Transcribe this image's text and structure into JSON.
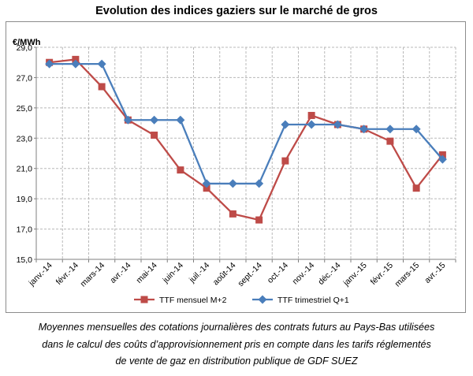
{
  "chart_data": {
    "type": "line",
    "title": "Evolution des indices gaziers sur le marché de gros",
    "ylabel": "€/MWh",
    "xlabel": "",
    "ylim": [
      15.0,
      29.0
    ],
    "yticks": [
      "15,0",
      "17,0",
      "19,0",
      "21,0",
      "23,0",
      "25,0",
      "27,0",
      "29,0"
    ],
    "grid": true,
    "legend_position": "bottom",
    "categories": [
      "janv.-14",
      "févr.-14",
      "mars-14",
      "avr.-14",
      "mai-14",
      "juin-14",
      "juil.-14",
      "août-14",
      "sept.-14",
      "oct.-14",
      "nov.-14",
      "déc.-14",
      "janv.-15",
      "févr.-15",
      "mars-15",
      "avr.-15"
    ],
    "series": [
      {
        "name": "TTF mensuel M+2",
        "color": "#be4b48",
        "marker": "square",
        "values": [
          28.0,
          28.2,
          26.4,
          24.2,
          23.2,
          20.9,
          19.7,
          18.0,
          17.6,
          21.5,
          24.5,
          23.9,
          23.6,
          22.8,
          19.7,
          21.9
        ]
      },
      {
        "name": "TTF trimestriel Q+1",
        "color": "#4a7ebb",
        "marker": "diamond",
        "values": [
          27.9,
          27.9,
          27.9,
          24.2,
          24.2,
          24.2,
          20.0,
          20.0,
          20.0,
          23.9,
          23.9,
          23.9,
          23.6,
          23.6,
          23.6,
          21.6
        ]
      }
    ]
  },
  "caption": {
    "line1": "Moyennes mensuelles des cotations journalières des contrats futurs au Pays-Bas utilisées",
    "line2": "dans le calcul des coûts d’approvisionnement pris en compte dans les tarifs réglementés",
    "line3": "de vente de gaz en distribution publique de GDF SUEZ"
  }
}
